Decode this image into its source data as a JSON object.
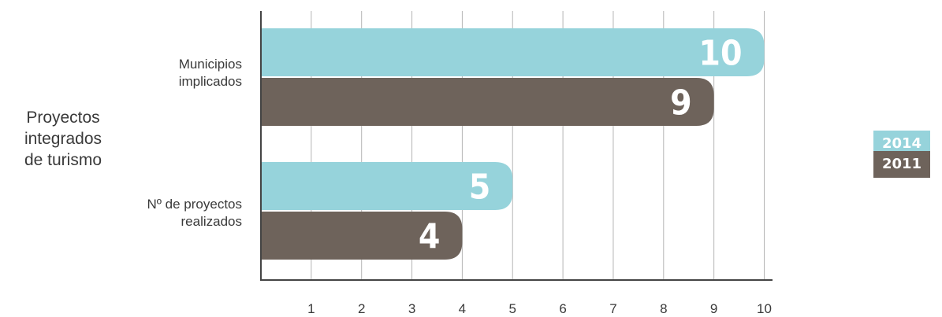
{
  "chart_data": {
    "type": "bar",
    "orientation": "horizontal",
    "title": "Proyectos integrados de turismo",
    "categories": [
      "Municipios implicados",
      "Nº de proyectos realizados"
    ],
    "category_lines": [
      [
        "Municipios",
        "implicados"
      ],
      [
        "Nº de proyectos",
        "realizados"
      ]
    ],
    "title_lines": [
      "Proyectos",
      "integrados",
      "de turismo"
    ],
    "series": [
      {
        "name": "2014",
        "color": "#96d3db",
        "values": [
          10,
          5
        ]
      },
      {
        "name": "2011",
        "color": "#6e635b",
        "values": [
          9,
          4
        ]
      }
    ],
    "xlim": [
      0,
      10
    ],
    "xticks": [
      1,
      2,
      3,
      4,
      5,
      6,
      7,
      8,
      9,
      10
    ],
    "grid": true,
    "data_labels": true,
    "legend_position": "right"
  }
}
